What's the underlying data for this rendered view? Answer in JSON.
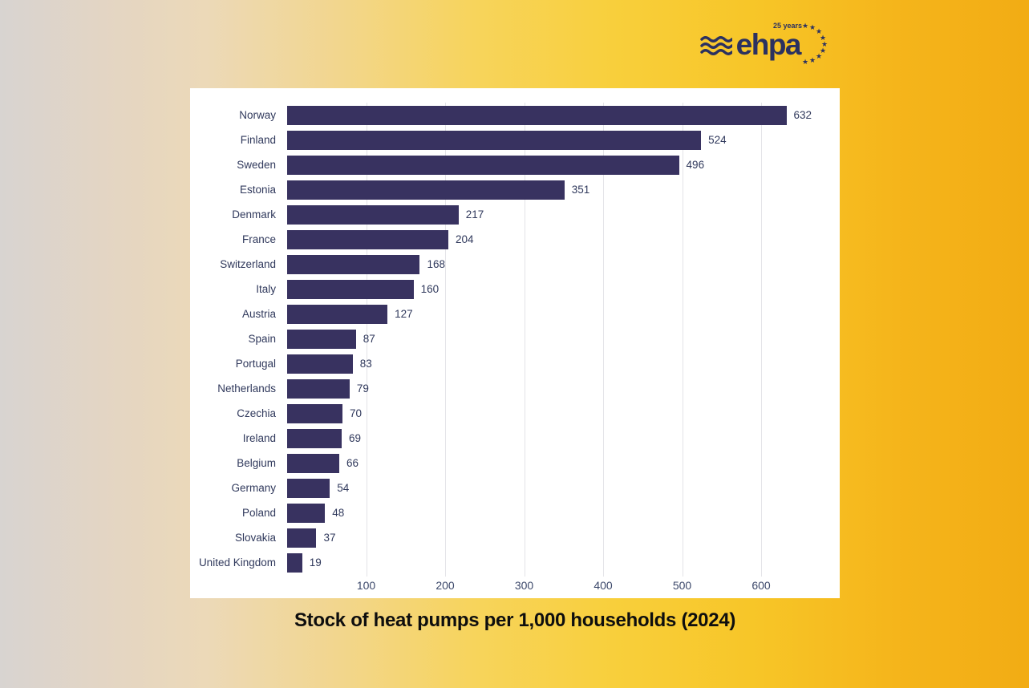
{
  "logo": {
    "brand": "ehpa",
    "tagline": "25 years",
    "color": "#2b3160",
    "waves_icon": "three-wavy-lines",
    "stars_icon": "eu-star-semicircle"
  },
  "caption": "Stock of heat pumps per 1,000 households (2024)",
  "chart_data": {
    "type": "bar",
    "orientation": "horizontal",
    "title": "Stock of heat pumps per 1,000 households (2024)",
    "categories": [
      "Norway",
      "Finland",
      "Sweden",
      "Estonia",
      "Denmark",
      "France",
      "Switzerland",
      "Italy",
      "Austria",
      "Spain",
      "Portugal",
      "Netherlands",
      "Czechia",
      "Ireland",
      "Belgium",
      "Germany",
      "Poland",
      "Slovakia",
      "United Kingdom"
    ],
    "values": [
      632,
      524,
      496,
      351,
      217,
      204,
      168,
      160,
      127,
      87,
      83,
      79,
      70,
      69,
      66,
      54,
      48,
      37,
      19
    ],
    "x_ticks": [
      100,
      200,
      300,
      400,
      500,
      600
    ],
    "xlim": [
      0,
      700
    ],
    "grid": true,
    "legend_position": "none",
    "value_labels": "end-of-bar",
    "bar_color": "#383260",
    "label_color": "#30395c",
    "tick_color": "#3c486a",
    "grid_color": "#e4e4e8",
    "plot_background": "#ffffff"
  },
  "colors": {
    "page_gradient_left": "#d8d4d1",
    "page_gradient_mid": "#f7d45c",
    "page_gradient_right": "#f2ac14",
    "logo": "#2b3160",
    "caption_text": "#0e0e0e"
  }
}
